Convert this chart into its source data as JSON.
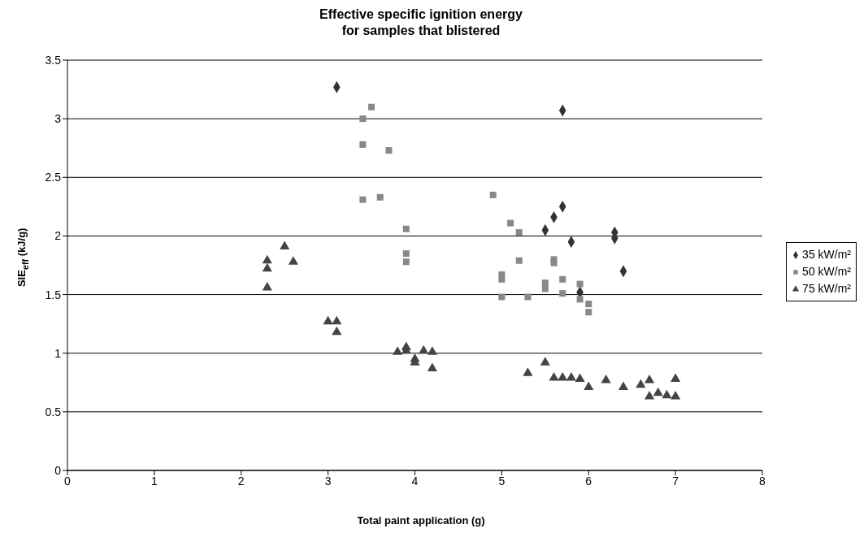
{
  "chart_data": {
    "type": "scatter",
    "title": "Effective specific ignition energy\nfor samples that blistered",
    "xlabel": "Total paint application (g)",
    "ylabel": "SIE$_{eff}$ (kJ/g)",
    "xlim": [
      0,
      8
    ],
    "xticks": [
      0,
      1,
      2,
      3,
      4,
      5,
      6,
      7,
      8
    ],
    "ylim": [
      0,
      3.5
    ],
    "yticks": [
      0,
      0.5,
      1,
      1.5,
      2,
      2.5,
      3,
      3.5
    ],
    "grid": "y",
    "legend": "right",
    "series": [
      {
        "name": "35 kW/m²",
        "color": "#333333",
        "marker": "diamond",
        "x": [
          3.1,
          5.7,
          5.7,
          5.6,
          5.5,
          6.3,
          6.3,
          5.8,
          6.4,
          5.9
        ],
        "values": [
          3.27,
          3.07,
          2.25,
          2.16,
          2.05,
          2.03,
          1.98,
          1.95,
          1.7,
          1.52
        ]
      },
      {
        "name": "50 kW/m²",
        "color": "#888888",
        "marker": "square",
        "x": [
          3.5,
          3.4,
          3.4,
          3.7,
          3.4,
          3.6,
          3.9,
          3.9,
          3.9,
          4.9,
          5.1,
          5.2,
          5.2,
          5.6,
          5.6,
          5.0,
          5.0,
          5.0,
          5.3,
          5.5,
          5.5,
          5.7,
          5.7,
          5.9,
          5.9,
          6.0,
          6.0
        ],
        "values": [
          3.1,
          3.0,
          2.78,
          2.73,
          2.31,
          2.33,
          2.06,
          1.85,
          1.78,
          2.35,
          2.11,
          2.03,
          1.79,
          1.8,
          1.77,
          1.67,
          1.63,
          1.48,
          1.48,
          1.6,
          1.55,
          1.63,
          1.51,
          1.59,
          1.46,
          1.42,
          1.35
        ]
      },
      {
        "name": "75 kW/m²",
        "color": "#444444",
        "marker": "triangle",
        "x": [
          2.3,
          2.3,
          2.3,
          2.5,
          2.6,
          3.0,
          3.1,
          3.1,
          3.8,
          3.9,
          3.9,
          4.0,
          4.0,
          4.1,
          4.2,
          4.2,
          5.3,
          5.5,
          5.6,
          5.7,
          5.8,
          5.9,
          6.0,
          6.2,
          6.4,
          6.6,
          6.7,
          6.7,
          6.8,
          6.9,
          7.0,
          7.0
        ],
        "values": [
          1.79,
          1.72,
          1.56,
          1.91,
          1.78,
          1.27,
          1.27,
          1.18,
          1.01,
          1.02,
          1.05,
          0.95,
          0.92,
          1.02,
          1.01,
          0.87,
          0.83,
          0.92,
          0.79,
          0.79,
          0.79,
          0.78,
          0.71,
          0.77,
          0.71,
          0.73,
          0.77,
          0.63,
          0.66,
          0.64,
          0.78,
          0.63
        ]
      }
    ]
  }
}
